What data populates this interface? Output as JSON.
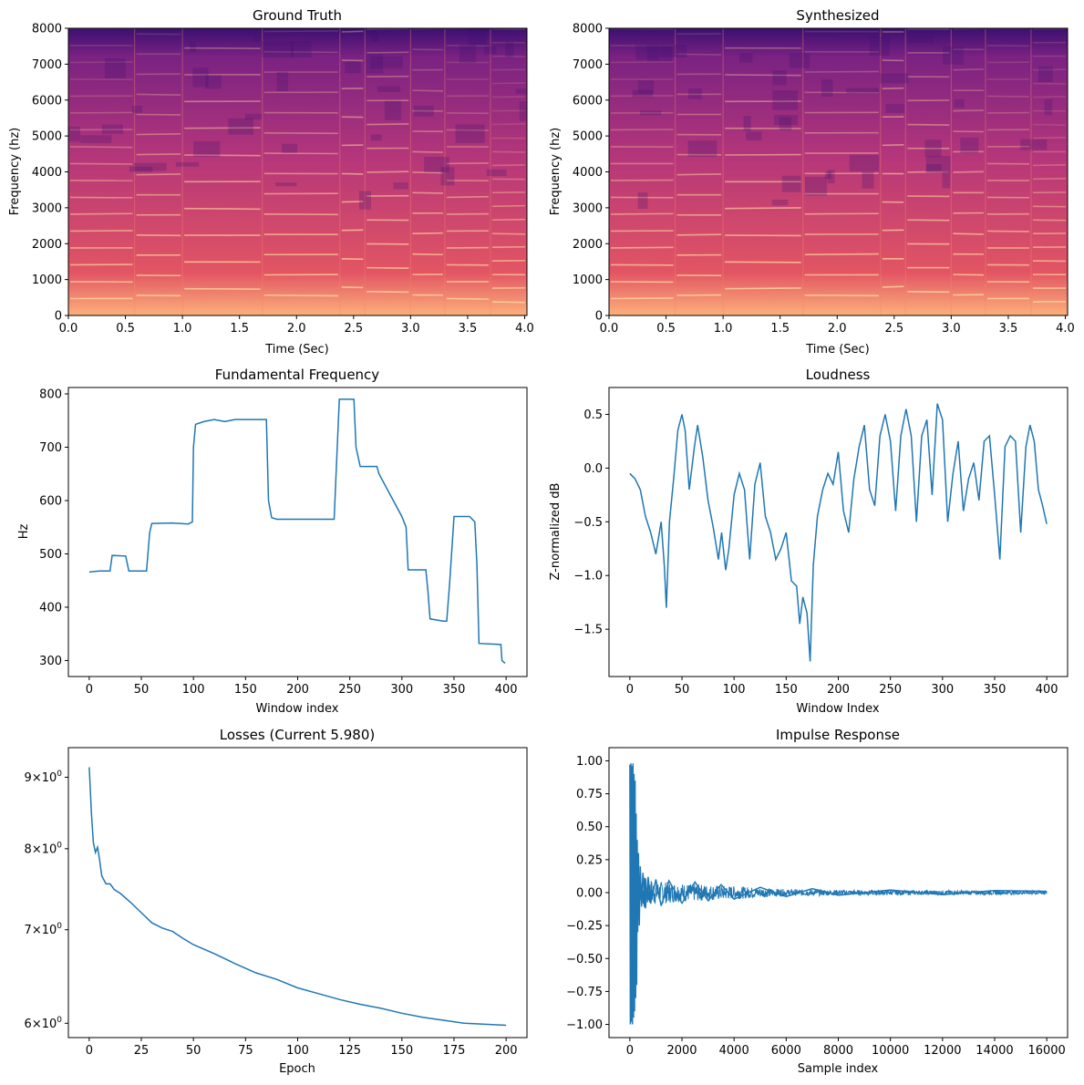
{
  "colors": {
    "line": "#1f77b4",
    "spectrogram_low": "#2d1160",
    "spectrogram_mid": "#c03a76",
    "spectrogram_high": "#fcb07a"
  },
  "chart_data": [
    {
      "type": "heatmap",
      "title": "Ground Truth",
      "xlabel": "Time (Sec)",
      "ylabel": "Frequency (hz)",
      "xlim": [
        0,
        4.02
      ],
      "ylim": [
        0,
        8000
      ],
      "xticks": [
        "0.0",
        "0.5",
        "1.0",
        "1.5",
        "2.0",
        "2.5",
        "3.0",
        "3.5",
        "4.0"
      ],
      "yticks": [
        "0",
        "1000",
        "2000",
        "3000",
        "4000",
        "5000",
        "6000",
        "7000",
        "8000"
      ],
      "colormap": "magma"
    },
    {
      "type": "heatmap",
      "title": "Synthesized",
      "xlabel": "Time (Sec)",
      "ylabel": "Frequency (hz)",
      "xlim": [
        0,
        4.02
      ],
      "ylim": [
        0,
        8000
      ],
      "xticks": [
        "0.0",
        "0.5",
        "1.0",
        "1.5",
        "2.0",
        "2.5",
        "3.0",
        "3.5",
        "4.0"
      ],
      "yticks": [
        "0",
        "1000",
        "2000",
        "3000",
        "4000",
        "5000",
        "6000",
        "7000",
        "8000"
      ],
      "colormap": "magma"
    },
    {
      "type": "line",
      "title": "Fundamental Frequency",
      "xlabel": "Window index",
      "ylabel": "Hz",
      "xlim": [
        -20,
        420
      ],
      "ylim": [
        270,
        812
      ],
      "xticks": [
        "0",
        "50",
        "100",
        "150",
        "200",
        "250",
        "300",
        "350",
        "400"
      ],
      "yticks": [
        "300",
        "400",
        "500",
        "600",
        "700",
        "800"
      ],
      "x": [
        0,
        10,
        20,
        22,
        35,
        38,
        55,
        58,
        60,
        80,
        95,
        99,
        100,
        102,
        110,
        120,
        130,
        140,
        150,
        160,
        170,
        172,
        175,
        180,
        200,
        220,
        235,
        238,
        240,
        250,
        254,
        256,
        260,
        276,
        278,
        300,
        304,
        306,
        323,
        325,
        327,
        340,
        343,
        346,
        350,
        365,
        370,
        372,
        374,
        395,
        396,
        399
      ],
      "y": [
        466,
        468,
        468,
        497,
        496,
        468,
        468,
        540,
        557,
        558,
        556,
        560,
        700,
        743,
        748,
        752,
        748,
        752,
        752,
        752,
        752,
        600,
        568,
        565,
        565,
        565,
        565,
        700,
        790,
        790,
        790,
        700,
        664,
        664,
        650,
        570,
        550,
        470,
        470,
        430,
        378,
        374,
        374,
        450,
        570,
        570,
        560,
        480,
        332,
        330,
        300,
        295
      ],
      "line_color": "#1f77b4"
    },
    {
      "type": "line",
      "title": "Loudness",
      "xlabel": "Window Index",
      "ylabel": "Z-normalized dB",
      "xlim": [
        -20,
        420
      ],
      "ylim": [
        -1.94,
        0.75
      ],
      "xticks": [
        "0",
        "50",
        "100",
        "150",
        "200",
        "250",
        "300",
        "350",
        "400"
      ],
      "yticks": [
        "0.5",
        "0.0",
        "−0.5",
        "−1.0",
        "−1.5"
      ],
      "x": [
        0,
        5,
        10,
        15,
        20,
        25,
        30,
        33,
        35,
        38,
        42,
        46,
        50,
        53,
        57,
        62,
        65,
        70,
        75,
        80,
        85,
        88,
        92,
        95,
        100,
        105,
        110,
        115,
        120,
        125,
        130,
        135,
        140,
        145,
        150,
        155,
        160,
        163,
        166,
        170,
        173,
        176,
        180,
        185,
        190,
        195,
        200,
        205,
        210,
        215,
        220,
        225,
        230,
        235,
        240,
        245,
        250,
        255,
        260,
        265,
        270,
        275,
        280,
        285,
        290,
        295,
        300,
        305,
        310,
        315,
        320,
        325,
        330,
        335,
        340,
        345,
        350,
        355,
        360,
        365,
        370,
        375,
        380,
        384,
        388,
        392,
        396,
        400
      ],
      "y": [
        -0.05,
        -0.1,
        -0.2,
        -0.45,
        -0.6,
        -0.8,
        -0.5,
        -0.9,
        -1.3,
        -0.5,
        -0.1,
        0.35,
        0.5,
        0.35,
        -0.2,
        0.2,
        0.4,
        0.1,
        -0.3,
        -0.55,
        -0.85,
        -0.6,
        -0.95,
        -0.75,
        -0.25,
        -0.05,
        -0.2,
        -0.85,
        -0.15,
        0.05,
        -0.45,
        -0.6,
        -0.85,
        -0.75,
        -0.6,
        -1.05,
        -1.1,
        -1.45,
        -1.2,
        -1.35,
        -1.8,
        -0.9,
        -0.45,
        -0.2,
        -0.05,
        -0.15,
        0.15,
        -0.4,
        -0.6,
        -0.1,
        0.2,
        0.4,
        -0.2,
        -0.35,
        0.3,
        0.5,
        0.25,
        -0.4,
        0.3,
        0.55,
        0.3,
        -0.5,
        0.3,
        0.45,
        -0.25,
        0.6,
        0.45,
        -0.5,
        -0.05,
        0.25,
        -0.4,
        -0.1,
        0.05,
        -0.3,
        0.25,
        0.3,
        -0.25,
        -0.85,
        0.2,
        0.3,
        0.25,
        -0.6,
        0.2,
        0.4,
        0.25,
        -0.2,
        -0.35,
        -0.52
      ],
      "line_color": "#1f77b4"
    },
    {
      "type": "line",
      "title": "Losses (Current 5.980)",
      "xlabel": "Epoch",
      "ylabel": "",
      "yscale": "log",
      "xlim": [
        -10,
        210
      ],
      "ylim": [
        5.86,
        9.45
      ],
      "xticks": [
        "0",
        "25",
        "50",
        "75",
        "100",
        "125",
        "150",
        "175",
        "200"
      ],
      "yticks": [
        {
          "value": 6,
          "mantissa": "6",
          "base": "10",
          "exponent": "0"
        },
        {
          "value": 7,
          "mantissa": "7",
          "base": "10",
          "exponent": "0"
        },
        {
          "value": 8,
          "mantissa": "8",
          "base": "10",
          "exponent": "0"
        },
        {
          "value": 9,
          "mantissa": "9",
          "base": "10",
          "exponent": "0"
        }
      ],
      "x": [
        0,
        1,
        2,
        3,
        4,
        5,
        6,
        8,
        10,
        12,
        15,
        20,
        25,
        30,
        35,
        40,
        45,
        50,
        60,
        70,
        80,
        90,
        100,
        110,
        120,
        130,
        140,
        150,
        160,
        170,
        180,
        190,
        200
      ],
      "y": [
        9.15,
        8.5,
        8.08,
        7.95,
        8.02,
        7.85,
        7.65,
        7.55,
        7.55,
        7.48,
        7.43,
        7.32,
        7.2,
        7.08,
        7.02,
        6.98,
        6.9,
        6.83,
        6.73,
        6.62,
        6.52,
        6.45,
        6.36,
        6.3,
        6.24,
        6.19,
        6.15,
        6.1,
        6.06,
        6.03,
        6.0,
        5.99,
        5.98
      ],
      "line_color": "#1f77b4"
    },
    {
      "type": "line",
      "title": "Impulse Response",
      "xlabel": "Sample index",
      "ylabel": "",
      "xlim": [
        -800,
        16800
      ],
      "ylim": [
        -1.1,
        1.1
      ],
      "xticks": [
        "0",
        "2000",
        "4000",
        "6000",
        "8000",
        "10000",
        "12000",
        "14000",
        "16000"
      ],
      "yticks": [
        "1.00",
        "0.75",
        "0.50",
        "0.25",
        "0.00",
        "−0.25",
        "−0.50",
        "−0.75",
        "−1.00"
      ],
      "x": [
        0,
        20,
        40,
        60,
        80,
        100,
        120,
        140,
        160,
        180,
        200,
        220,
        240,
        260,
        280,
        300,
        330,
        360,
        400,
        450,
        500,
        600,
        700,
        800,
        1000,
        1200,
        1500,
        2000,
        2500,
        3000,
        3500,
        4000,
        5000,
        6000,
        7000,
        8000,
        10000,
        12000,
        14000,
        16000
      ],
      "y": [
        0.97,
        -1.0,
        0.98,
        -0.98,
        0.96,
        -1.0,
        0.98,
        -0.95,
        0.9,
        -0.9,
        0.85,
        -0.8,
        0.6,
        -0.7,
        0.4,
        -0.3,
        0.3,
        -0.25,
        0.2,
        -0.1,
        0.15,
        -0.12,
        0.12,
        -0.08,
        0.1,
        -0.1,
        0.09,
        -0.08,
        0.08,
        -0.06,
        0.06,
        -0.05,
        0.04,
        -0.03,
        0.03,
        -0.02,
        0.02,
        -0.015,
        0.015,
        0.01
      ],
      "noise_envelope": {
        "x": [
          300,
          1000,
          2000,
          4000,
          6000,
          10000,
          16000
        ],
        "amplitude": [
          0.14,
          0.09,
          0.07,
          0.05,
          0.025,
          0.018,
          0.015
        ]
      },
      "line_color": "#1f77b4"
    }
  ]
}
